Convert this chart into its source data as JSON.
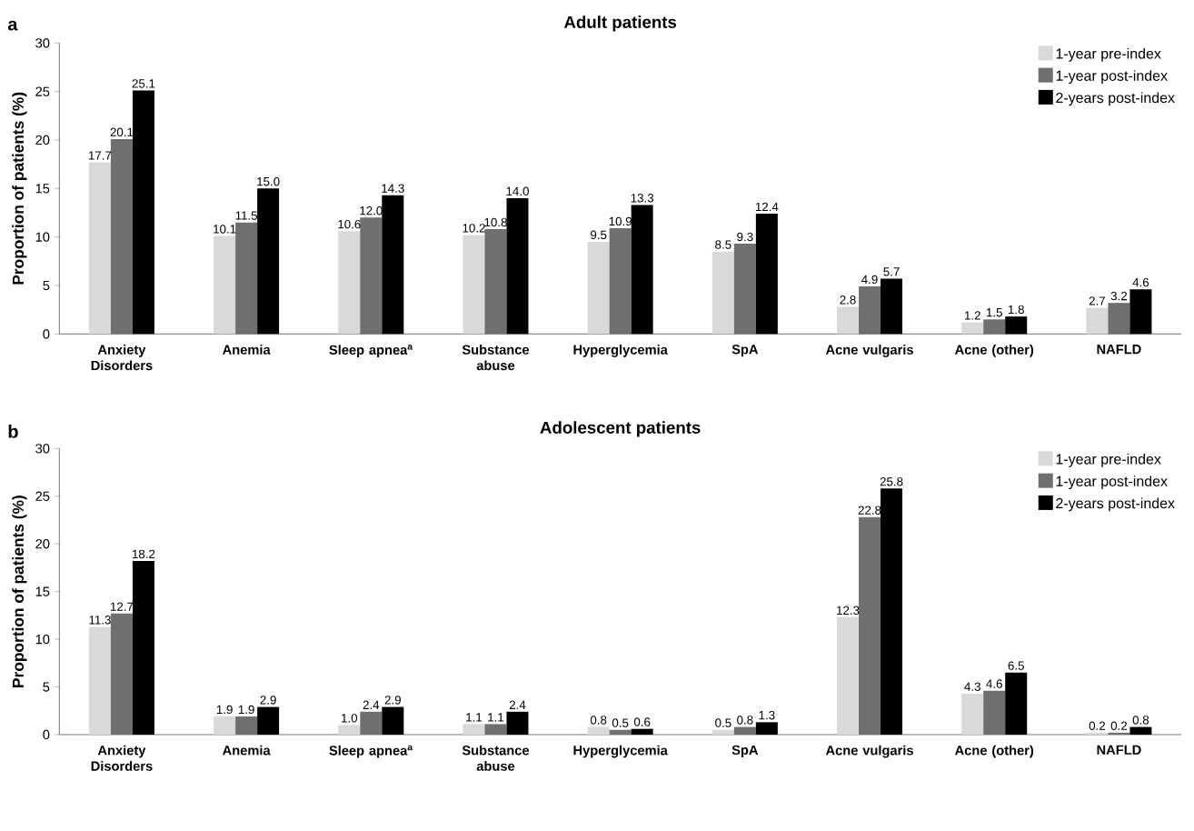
{
  "chart_data": [
    {
      "type": "bar",
      "title": "Adult patients",
      "ylabel": "Proportion of patients (%)",
      "annotations": [
        "a"
      ],
      "categories": [
        "Anxiety Disorders",
        "Anemia",
        "Sleep apnea$^{a}$",
        "Substance abuse",
        "Hyperglycemia",
        "SpA",
        "Acne vulgaris",
        "Acne (other)",
        "NAFLD"
      ],
      "series": [
        {
          "name": "1-year pre-index",
          "color": "#d9d9d9",
          "values": [
            17.7,
            10.1,
            10.6,
            10.2,
            9.5,
            8.5,
            2.8,
            1.2,
            2.7
          ],
          "value_labels": [
            "17.7",
            "10.1",
            "10.6",
            "10.2",
            "9.5",
            "8.5",
            "2.8",
            "1.2",
            "2.7"
          ]
        },
        {
          "name": "1-year post-index",
          "color": "#6f6f6f",
          "values": [
            20.1,
            11.5,
            12.0,
            10.8,
            10.9,
            9.3,
            4.9,
            1.5,
            3.2
          ],
          "value_labels": [
            "20.1",
            "11.5",
            "12.0",
            "10.8",
            "10.9",
            "9.3",
            "4.9",
            "1.5",
            "3.2"
          ]
        },
        {
          "name": "2-years post-index",
          "color": "#000000",
          "values": [
            25.1,
            15.0,
            14.3,
            14.0,
            13.3,
            12.4,
            5.7,
            1.8,
            4.6
          ],
          "value_labels": [
            "25.1",
            "15.0",
            "14.3",
            "14.0",
            "13.3",
            "12.4",
            "5.7",
            "1.8",
            "4.6"
          ]
        }
      ],
      "ylim": [
        0,
        30
      ],
      "yticks": [
        0,
        5,
        10,
        15,
        20,
        25,
        30
      ],
      "legend": "top right"
    },
    {
      "type": "bar",
      "title": "Adolescent patients",
      "ylabel": "Proportion of patients (%)",
      "annotations": [
        "b"
      ],
      "categories": [
        "Anxiety Disorders",
        "Anemia",
        "Sleep apnea$^{a}$",
        "Substance abuse",
        "Hyperglycemia",
        "SpA",
        "Acne vulgaris",
        "Acne (other)",
        "NAFLD"
      ],
      "series": [
        {
          "name": "1-year pre-index",
          "color": "#d9d9d9",
          "values": [
            11.3,
            1.9,
            1.0,
            1.1,
            0.8,
            0.5,
            12.3,
            4.3,
            0.2
          ],
          "value_labels": [
            "11.3",
            "1.9",
            "1.0",
            "1.1",
            "0.8",
            "0.5",
            "12.3",
            "4.3",
            "0.2"
          ]
        },
        {
          "name": "1-year post-index",
          "color": "#6f6f6f",
          "values": [
            12.7,
            1.9,
            2.4,
            1.1,
            0.5,
            0.8,
            22.8,
            4.6,
            0.2
          ],
          "value_labels": [
            "12.7",
            "1.9",
            "2.4",
            "1.1",
            "0.5",
            "0.8",
            "22.8",
            "4.6",
            "0.2"
          ]
        },
        {
          "name": "2-years post-index",
          "color": "#000000",
          "values": [
            18.2,
            2.9,
            2.9,
            2.4,
            0.6,
            1.3,
            25.8,
            6.5,
            0.8
          ],
          "value_labels": [
            "18.2",
            "2.9",
            "2.9",
            "2.4",
            "0.6",
            "1.3",
            "25.8",
            "6.5",
            "0.8"
          ]
        }
      ],
      "ylim": [
        0,
        30
      ],
      "yticks": [
        0,
        5,
        10,
        15,
        20,
        25,
        30
      ],
      "legend": "top right"
    }
  ]
}
